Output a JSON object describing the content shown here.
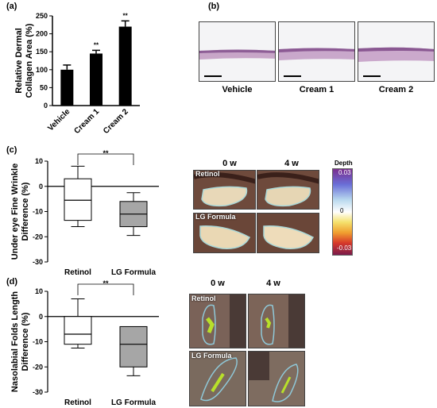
{
  "panel_letters": {
    "a": "(a)",
    "b": "(b)",
    "c": "(c)",
    "d": "(d)"
  },
  "chart_data": [
    {
      "id": "a",
      "type": "bar",
      "categories": [
        "Vehicle",
        "Cream 1",
        "Cream 2"
      ],
      "values": [
        100,
        145,
        220
      ],
      "errors": [
        13,
        9,
        16
      ],
      "significance": [
        "",
        "**",
        "**"
      ],
      "ylabel": "Relative Dermal Collagen Area (%)",
      "ylabel_lines": [
        "Relative Dermal",
        "Collagen Area (%)"
      ],
      "ylim": [
        0,
        250
      ],
      "yticks": [
        0,
        50,
        100,
        150,
        200,
        250
      ],
      "bar_color": "#000000"
    },
    {
      "id": "c",
      "type": "box",
      "categories": [
        "Retinol",
        "LG Formula"
      ],
      "boxes": [
        {
          "whisker_low": -16,
          "q1": -13.5,
          "median": -5.5,
          "q3": 3,
          "whisker_high": 8
        },
        {
          "whisker_low": -19.5,
          "q1": -16,
          "median": -11,
          "q3": -6,
          "whisker_high": -2.5
        }
      ],
      "fill_colors": [
        "#ffffff",
        "#a6a6a6"
      ],
      "significance": "**",
      "ylabel": "Under eye Fine Wrinkle Difference (%)",
      "ylabel_lines": [
        "Under eye Fine Wrinkle",
        "Difference (%)"
      ],
      "ylim": [
        -30,
        10
      ],
      "yticks": [
        10,
        0,
        -10,
        -20,
        -30
      ]
    },
    {
      "id": "d",
      "type": "box",
      "categories": [
        "Retinol",
        "LG Formula"
      ],
      "boxes": [
        {
          "whisker_low": -12.5,
          "q1": -11,
          "median": -7,
          "q3": 0,
          "whisker_high": 7
        },
        {
          "whisker_low": -23.5,
          "q1": -20,
          "median": -11,
          "q3": -4,
          "whisker_high": -4
        }
      ],
      "fill_colors": [
        "#ffffff",
        "#a6a6a6"
      ],
      "significance": "**",
      "ylabel": "Nasolabial Folds Length Difference (%)",
      "ylabel_lines": [
        "Nasolabial Folds Length",
        "Difference (%)"
      ],
      "ylim": [
        -30,
        10
      ],
      "yticks": [
        10,
        0,
        -10,
        -20,
        -30
      ]
    }
  ],
  "panel_b": {
    "captions": [
      "Vehicle",
      "Cream 1",
      "Cream 2"
    ]
  },
  "panel_c_images": {
    "time_labels": [
      "0 w",
      "4 w"
    ],
    "row_labels": [
      "Retinol",
      "LG Formula"
    ],
    "colorbar": {
      "title": "Depth",
      "max": "0.03",
      "mid": "0",
      "min": "-0.03"
    }
  },
  "panel_d_images": {
    "time_labels": [
      "0 w",
      "4 w"
    ],
    "row_labels": [
      "Retinol",
      "LG Formula"
    ]
  }
}
